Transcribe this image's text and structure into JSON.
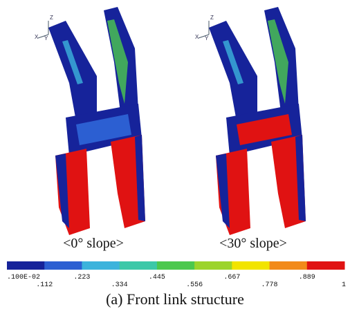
{
  "panels": [
    {
      "label": "<0° slope>",
      "axes": [
        "Z",
        "X",
        "Y"
      ]
    },
    {
      "label": "<30° slope>",
      "axes": [
        "Z",
        "X",
        "Y"
      ]
    }
  ],
  "legend": {
    "labels": [
      ".100E-02",
      ".112",
      ".223",
      ".334",
      ".445",
      ".556",
      ".667",
      ".778",
      ".889",
      "1"
    ],
    "colors": [
      "#16239a",
      "#2c5fd2",
      "#3cb3dc",
      "#3cc8a8",
      "#4cc84e",
      "#9cd42c",
      "#f2e400",
      "#f28a1a",
      "#e01212"
    ]
  },
  "caption": "(a) Front link structure"
}
